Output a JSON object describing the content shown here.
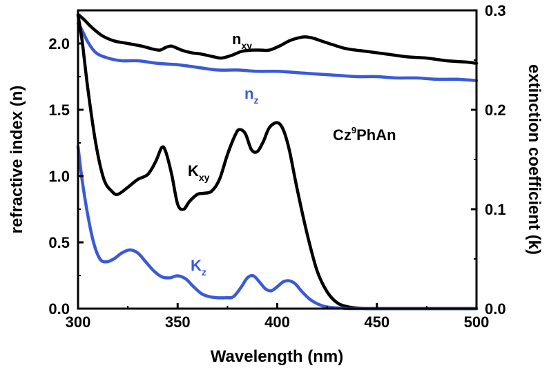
{
  "chart_data": {
    "type": "line",
    "xlabel": "Wavelength (nm)",
    "ylabel_left": "refractive index (n)",
    "ylabel_right": "extinction coefficient (k)",
    "xlim": [
      300,
      500
    ],
    "ylim_left": [
      0,
      2.25
    ],
    "ylim_right": [
      0,
      0.3
    ],
    "x_ticks": [
      "300",
      "350",
      "400",
      "450",
      "500"
    ],
    "y_ticks_left": [
      "0.0",
      "0.5",
      "1.0",
      "1.5",
      "2.0"
    ],
    "y_ticks_right": [
      "0.0",
      "0.1",
      "0.2",
      "0.3"
    ],
    "grid": false,
    "legend": "none",
    "compound_label": {
      "main": "Cz",
      "sup": "9",
      "rest": "PhAn"
    },
    "series": [
      {
        "label": {
          "main": "n",
          "sub": "xy"
        },
        "axis": "left",
        "color": "#000000",
        "x": [
          300,
          303,
          307,
          312,
          318,
          325,
          332,
          337,
          341,
          344,
          347,
          352,
          357,
          362,
          368,
          372,
          377,
          382,
          387,
          392,
          396,
          401,
          406,
          410,
          414,
          418,
          422,
          428,
          435,
          445,
          455,
          465,
          475,
          485,
          495,
          500
        ],
        "y": [
          2.22,
          2.18,
          2.12,
          2.06,
          2.02,
          2.0,
          1.98,
          1.96,
          1.95,
          1.97,
          1.98,
          1.95,
          1.93,
          1.92,
          1.9,
          1.89,
          1.91,
          1.94,
          1.95,
          1.95,
          1.95,
          1.98,
          2.02,
          2.04,
          2.05,
          2.04,
          2.02,
          1.99,
          1.96,
          1.94,
          1.92,
          1.9,
          1.89,
          1.87,
          1.86,
          1.85
        ]
      },
      {
        "label": {
          "main": "n",
          "sub": "z"
        },
        "axis": "left",
        "color": "#3a5ad9",
        "x": [
          300,
          302,
          305,
          309,
          315,
          322,
          330,
          340,
          350,
          360,
          370,
          380,
          390,
          400,
          410,
          420,
          430,
          440,
          450,
          460,
          470,
          480,
          490,
          500
        ],
        "y": [
          2.15,
          2.1,
          2.01,
          1.93,
          1.89,
          1.87,
          1.87,
          1.85,
          1.84,
          1.82,
          1.8,
          1.8,
          1.79,
          1.79,
          1.78,
          1.77,
          1.76,
          1.75,
          1.75,
          1.74,
          1.74,
          1.73,
          1.73,
          1.72
        ]
      },
      {
        "label": {
          "main": "K",
          "sub": "xy"
        },
        "axis": "right",
        "color": "#000000",
        "x": [
          300,
          302,
          305,
          309,
          313,
          317,
          320,
          325,
          330,
          335,
          339,
          342,
          344,
          347,
          350,
          353,
          356,
          360,
          363,
          367,
          371,
          375,
          379,
          381,
          384,
          387,
          390,
          393,
          396,
          400,
          403,
          406,
          410,
          415,
          420,
          425,
          430,
          435,
          440,
          445,
          450,
          460,
          470,
          480,
          490,
          500
        ],
        "y": [
          0.295,
          0.27,
          0.22,
          0.165,
          0.13,
          0.118,
          0.115,
          0.122,
          0.13,
          0.135,
          0.148,
          0.162,
          0.158,
          0.135,
          0.105,
          0.1,
          0.108,
          0.115,
          0.116,
          0.118,
          0.13,
          0.155,
          0.175,
          0.18,
          0.176,
          0.16,
          0.158,
          0.168,
          0.182,
          0.187,
          0.18,
          0.16,
          0.12,
          0.075,
          0.038,
          0.017,
          0.006,
          0.002,
          0.0005,
          0,
          0,
          0,
          0,
          0,
          0,
          0
        ]
      },
      {
        "label": {
          "main": "K",
          "sub": "z"
        },
        "axis": "right",
        "color": "#3a5ad9",
        "x": [
          300,
          302,
          305,
          308,
          311,
          314,
          318,
          322,
          326,
          330,
          334,
          338,
          342,
          346,
          350,
          354,
          358,
          362,
          366,
          370,
          374,
          378,
          382,
          385,
          388,
          391,
          394,
          397,
          400,
          403,
          406,
          409,
          412,
          416,
          420,
          424,
          428,
          432,
          436,
          440,
          450,
          460,
          480,
          500
        ],
        "y": [
          0.163,
          0.13,
          0.093,
          0.065,
          0.05,
          0.047,
          0.05,
          0.056,
          0.059,
          0.056,
          0.047,
          0.038,
          0.032,
          0.031,
          0.033,
          0.03,
          0.022,
          0.015,
          0.012,
          0.011,
          0.011,
          0.012,
          0.022,
          0.031,
          0.033,
          0.027,
          0.02,
          0.018,
          0.022,
          0.027,
          0.028,
          0.025,
          0.018,
          0.01,
          0.005,
          0.002,
          0.001,
          0.0005,
          0,
          0,
          0,
          0,
          0,
          0
        ]
      }
    ]
  }
}
